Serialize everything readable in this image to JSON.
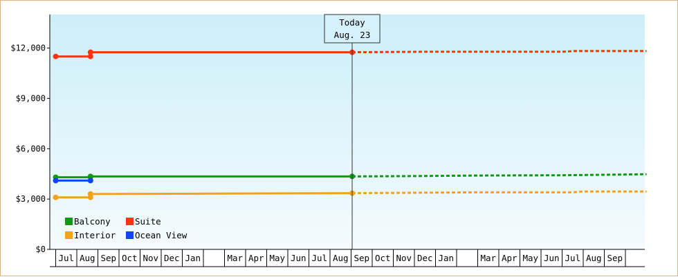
{
  "chart_data": {
    "type": "line",
    "title": "",
    "xlabel": "",
    "ylabel": "",
    "ylim": [
      0,
      14000
    ],
    "y_ticks": [
      {
        "value": 0,
        "label": "$0"
      },
      {
        "value": 3000,
        "label": "$3,000"
      },
      {
        "value": 6000,
        "label": "$6,000"
      },
      {
        "value": 9000,
        "label": "$9,000"
      },
      {
        "value": 12000,
        "label": "$12,000"
      }
    ],
    "months": [
      "Jul",
      "Aug",
      "Sep",
      "Oct",
      "Nov",
      "Dec",
      "Jan",
      "",
      "Mar",
      "Apr",
      "May",
      "Jun",
      "Jul",
      "Aug",
      "Sep",
      "Oct",
      "Nov",
      "Dec",
      "Jan",
      "",
      "Mar",
      "Apr",
      "May",
      "Jun",
      "Jul",
      "Aug",
      "Sep"
    ],
    "today": {
      "line1": "Today",
      "line2": "Aug. 23"
    },
    "grid": false,
    "legend_position": "bottom-left",
    "series": [
      {
        "name": "Balcony",
        "color": "#119911",
        "solid": [
          [
            0,
            4300
          ],
          [
            1.65,
            4300
          ],
          [
            1.65,
            4350
          ],
          [
            14.05,
            4350
          ]
        ],
        "dashed": [
          [
            14.05,
            4350
          ],
          [
            17,
            4370
          ],
          [
            20,
            4400
          ],
          [
            24,
            4420
          ],
          [
            26.8,
            4460
          ],
          [
            28,
            4480
          ]
        ],
        "markers": [
          [
            0,
            4300
          ],
          [
            1.65,
            4300
          ],
          [
            1.65,
            4350
          ],
          [
            14.05,
            4350
          ]
        ]
      },
      {
        "name": "Suite",
        "color": "#ff3311",
        "solid": [
          [
            0,
            11500
          ],
          [
            1.65,
            11500
          ],
          [
            1.65,
            11750
          ],
          [
            14.05,
            11750
          ]
        ],
        "dashed": [
          [
            14.05,
            11750
          ],
          [
            17.5,
            11780
          ],
          [
            20,
            11780
          ],
          [
            24,
            11780
          ],
          [
            24.6,
            11820
          ],
          [
            28,
            11820
          ]
        ],
        "markers": [
          [
            0,
            11500
          ],
          [
            1.65,
            11500
          ],
          [
            1.65,
            11750
          ],
          [
            14.05,
            11750
          ]
        ]
      },
      {
        "name": "Interior",
        "color": "#f5a316",
        "solid": [
          [
            0,
            3100
          ],
          [
            1.65,
            3100
          ],
          [
            1.65,
            3300
          ],
          [
            14.05,
            3350
          ]
        ],
        "dashed": [
          [
            14.05,
            3350
          ],
          [
            17.5,
            3380
          ],
          [
            20,
            3400
          ],
          [
            24.5,
            3400
          ],
          [
            25,
            3450
          ],
          [
            28,
            3450
          ]
        ],
        "markers": [
          [
            0,
            3100
          ],
          [
            1.65,
            3100
          ],
          [
            1.65,
            3300
          ],
          [
            14.05,
            3350
          ]
        ]
      },
      {
        "name": "Ocean View",
        "color": "#1144ee",
        "solid": [
          [
            0,
            4100
          ],
          [
            1.65,
            4100
          ]
        ],
        "dashed": [],
        "markers": [
          [
            0,
            4100
          ],
          [
            1.65,
            4100
          ]
        ]
      }
    ]
  }
}
